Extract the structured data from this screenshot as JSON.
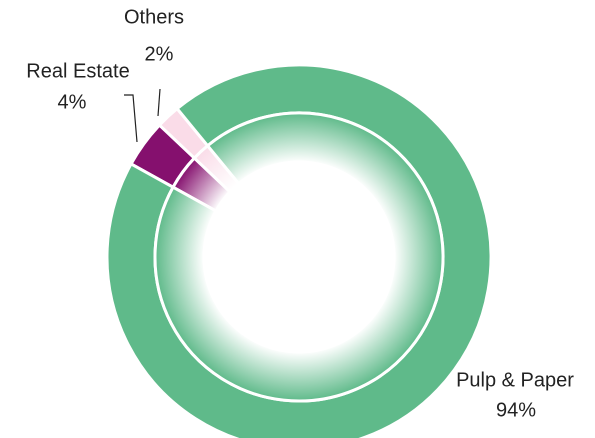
{
  "chart_data": {
    "type": "donut",
    "categories": [
      "Real Estate",
      "Others",
      "Pulp & Paper"
    ],
    "values": [
      4,
      2,
      94
    ],
    "value_labels": [
      "4%",
      "2%",
      "94%"
    ],
    "colors": [
      "#85106e",
      "#fadce8",
      "#5fba8a"
    ]
  }
}
